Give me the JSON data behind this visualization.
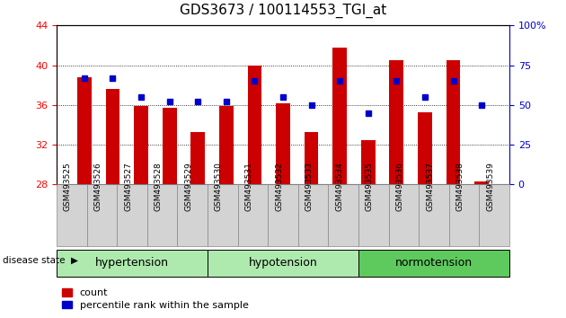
{
  "title": "GDS3673 / 100114553_TGI_at",
  "samples": [
    "GSM493525",
    "GSM493526",
    "GSM493527",
    "GSM493528",
    "GSM493529",
    "GSM493530",
    "GSM493531",
    "GSM493532",
    "GSM493533",
    "GSM493534",
    "GSM493535",
    "GSM493536",
    "GSM493537",
    "GSM493538",
    "GSM493539"
  ],
  "counts": [
    38.8,
    37.6,
    35.9,
    35.7,
    33.3,
    35.9,
    40.0,
    36.2,
    33.3,
    41.8,
    32.5,
    40.5,
    35.3,
    40.5,
    28.3
  ],
  "percentiles": [
    67,
    67,
    55,
    52,
    52,
    52,
    65,
    55,
    50,
    65,
    45,
    65,
    55,
    65,
    50
  ],
  "group_boundaries": [
    0,
    5,
    10,
    15
  ],
  "group_names": [
    "hypertension",
    "hypotension",
    "normotension"
  ],
  "group_facecolors": [
    "#aeeaae",
    "#aeeaae",
    "#5eca5e"
  ],
  "bar_color": "#cc0000",
  "dot_color": "#0000cc",
  "ylim_left": [
    28,
    44
  ],
  "ylim_right": [
    0,
    100
  ],
  "yticks_left": [
    28,
    32,
    36,
    40,
    44
  ],
  "yticks_right": [
    0,
    25,
    50,
    75,
    100
  ],
  "grid_ticks": [
    32,
    36,
    40
  ],
  "bar_width": 0.5,
  "tick_label_fontsize": 8,
  "sample_fontsize": 6.5,
  "group_fontsize": 9,
  "title_fontsize": 11
}
